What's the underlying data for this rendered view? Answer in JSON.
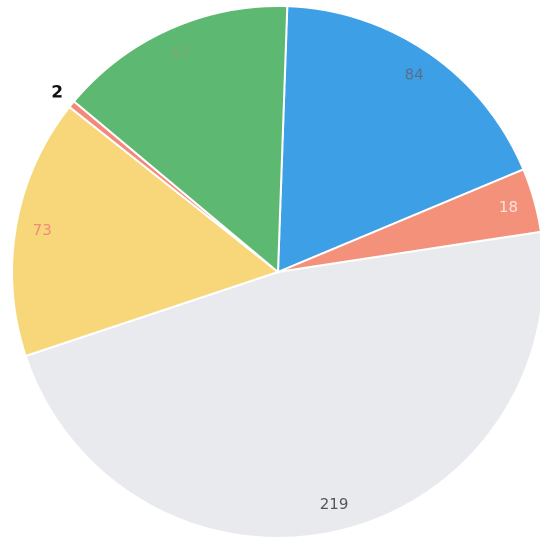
{
  "chart_data": {
    "type": "pie",
    "categories": [
      null,
      null,
      null,
      null,
      null,
      null
    ],
    "values": [
      84,
      18,
      219,
      73,
      2,
      67
    ],
    "colors": [
      "#3d9fe6",
      "#f4917a",
      "#e9eaee",
      "#f8d67a",
      "#f2897a",
      "#5db872"
    ],
    "label_colors": [
      "#5a6e8a",
      "#fbe3da",
      "#555555",
      "#f08a7a",
      "#111111",
      "#7fa86f"
    ]
  }
}
